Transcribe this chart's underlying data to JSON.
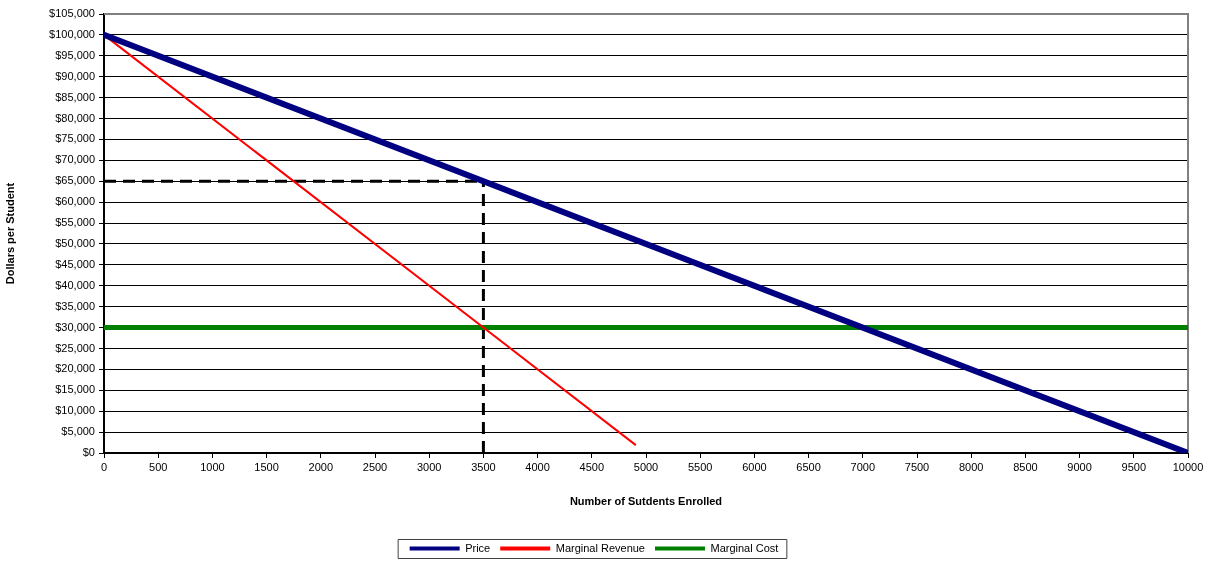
{
  "chart_data": {
    "type": "line",
    "xlabel": "Number of Sutdents Enrolled",
    "ylabel": "Dollars per Student",
    "series": [
      {
        "name": "Price",
        "color": "#000080",
        "x": [
          0,
          10000
        ],
        "values": [
          100000,
          0
        ]
      },
      {
        "name": "Marginal Revenue",
        "color": "#ff0000",
        "x": [
          0,
          4900
        ],
        "values": [
          100000,
          2000
        ]
      },
      {
        "name": "Marginal Cost",
        "color": "#008000",
        "x": [
          0,
          10000
        ],
        "values": [
          30000,
          30000
        ]
      },
      {
        "color": "#000000",
        "line_style": "dashed",
        "x": [
          0,
          3500
        ],
        "values": [
          65000,
          65000
        ]
      },
      {
        "color": "#000000",
        "line_style": "dashed",
        "x": [
          3500,
          3500
        ],
        "values": [
          0,
          65000
        ]
      }
    ],
    "xlim": [
      0,
      10000
    ],
    "xticks": [
      0,
      500,
      1000,
      1500,
      2000,
      2500,
      3000,
      3500,
      4000,
      4500,
      5000,
      5500,
      6000,
      6500,
      7000,
      7500,
      8000,
      8500,
      9000,
      9500,
      10000
    ],
    "ylim": [
      0,
      105000
    ],
    "yticks": [
      {
        "value": 0,
        "label": "$0"
      },
      {
        "value": 5000,
        "label": "$5,000"
      },
      {
        "value": 10000,
        "label": "$10,000"
      },
      {
        "value": 15000,
        "label": "$15,000"
      },
      {
        "value": 20000,
        "label": "$20,000"
      },
      {
        "value": 25000,
        "label": "$25,000"
      },
      {
        "value": 30000,
        "label": "$30,000"
      },
      {
        "value": 35000,
        "label": "$35,000"
      },
      {
        "value": 40000,
        "label": "$40,000"
      },
      {
        "value": 45000,
        "label": "$45,000"
      },
      {
        "value": 50000,
        "label": "$50,000"
      },
      {
        "value": 55000,
        "label": "$55,000"
      },
      {
        "value": 60000,
        "label": "$60,000"
      },
      {
        "value": 65000,
        "label": "$65,000"
      },
      {
        "value": 70000,
        "label": "$70,000"
      },
      {
        "value": 75000,
        "label": "$75,000"
      },
      {
        "value": 80000,
        "label": "$80,000"
      },
      {
        "value": 85000,
        "label": "$85,000"
      },
      {
        "value": 90000,
        "label": "$90,000"
      },
      {
        "value": 95000,
        "label": "$95,000"
      },
      {
        "value": 100000,
        "label": "$100,000"
      },
      {
        "value": 105000,
        "label": "$105,000"
      }
    ],
    "grid": "y",
    "legend": "bottom"
  }
}
